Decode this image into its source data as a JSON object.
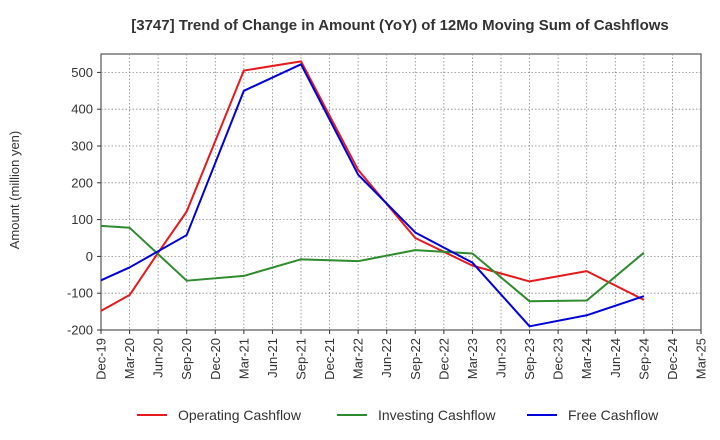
{
  "chart_data": {
    "type": "line",
    "title": "[3747]  Trend of Change in Amount (YoY) of 12Mo Moving Sum of Cashflows",
    "xlabel": "",
    "ylabel": "Amount (million yen)",
    "ylim": [
      -200,
      550
    ],
    "yticks": [
      -200,
      -100,
      0,
      100,
      200,
      300,
      400,
      500
    ],
    "grid": true,
    "legend_position": "bottom",
    "categories": [
      "Dec-19",
      "Mar-20",
      "Jun-20",
      "Sep-20",
      "Dec-20",
      "Mar-21",
      "Jun-21",
      "Sep-21",
      "Dec-21",
      "Mar-22",
      "Jun-22",
      "Sep-22",
      "Dec-22",
      "Mar-23",
      "Jun-23",
      "Sep-23",
      "Dec-23",
      "Mar-24",
      "Jun-24",
      "Sep-24",
      "Dec-24",
      "Mar-25"
    ],
    "series": [
      {
        "name": "Operating Cashflow",
        "color": "#e41a1c",
        "values": [
          -148,
          -105,
          10,
          122,
          null,
          505,
          null,
          530,
          null,
          235,
          null,
          50,
          null,
          -25,
          null,
          -68,
          null,
          -40,
          null,
          -118,
          null,
          null
        ]
      },
      {
        "name": "Investing Cashflow",
        "color": "#2e8b2e",
        "values": [
          83,
          78,
          null,
          -66,
          null,
          -53,
          null,
          -8,
          null,
          -13,
          null,
          17,
          null,
          8,
          null,
          -122,
          null,
          -120,
          null,
          10,
          null,
          null
        ]
      },
      {
        "name": "Free Cashflow",
        "color": "#0000dd",
        "values": [
          -65,
          -30,
          null,
          58,
          null,
          450,
          null,
          522,
          null,
          222,
          null,
          65,
          null,
          -17,
          null,
          -190,
          null,
          -160,
          null,
          -108,
          null,
          null
        ]
      }
    ]
  }
}
